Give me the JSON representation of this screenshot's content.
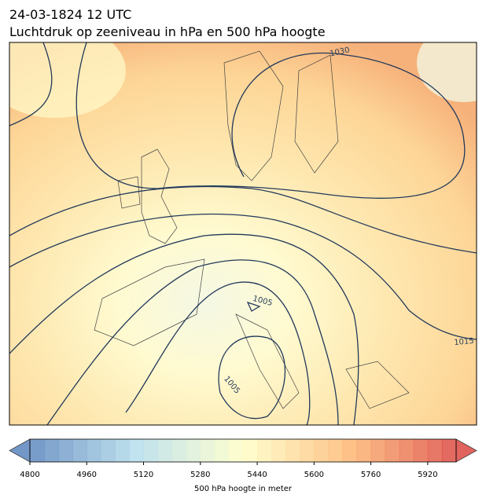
{
  "header": {
    "date": "24-03-1824 12 UTC",
    "title": "Luchtdruk op zeeniveau in hPa en 500 hPa hoogte"
  },
  "isobar_labels": [
    1030,
    1015,
    1005,
    1005
  ],
  "colorbar": {
    "range": [
      4800,
      6000
    ],
    "step": 40,
    "ticks": [
      4800,
      4960,
      5120,
      5280,
      5440,
      5600,
      5760,
      5920
    ],
    "label": "500 hPa hoogte in meter"
  }
}
